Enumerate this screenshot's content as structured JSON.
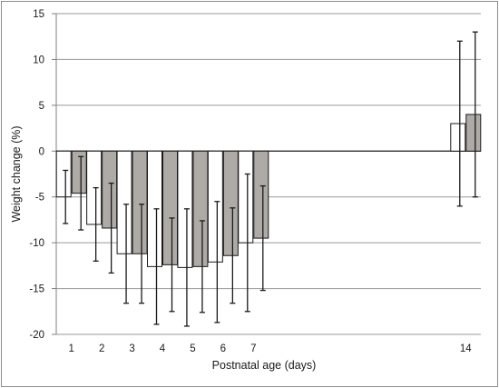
{
  "chart_data": {
    "type": "bar",
    "title": "",
    "xlabel": "Postnatal age (days)",
    "ylabel": "Weight change (%)",
    "ylim": [
      -20,
      15
    ],
    "yticks": [
      15,
      10,
      5,
      0,
      -5,
      -10,
      -15,
      -20
    ],
    "grid": true,
    "legend": "none",
    "categories": [
      "1",
      "2",
      "3",
      "4",
      "5",
      "6",
      "7",
      "14"
    ],
    "category_x": [
      1,
      2,
      3,
      4,
      5,
      6,
      7,
      14
    ],
    "xlim": [
      0.5,
      14.5
    ],
    "series": [
      {
        "color": "#ffffff",
        "values": [
          -5.0,
          -8.0,
          -11.2,
          -12.6,
          -12.7,
          -12.1,
          -10.0,
          3.0
        ],
        "error": [
          2.9,
          4.0,
          5.4,
          6.3,
          6.4,
          6.6,
          7.5,
          9.0
        ]
      },
      {
        "color": "#aeaaa6",
        "values": [
          -4.6,
          -8.4,
          -11.2,
          -12.4,
          -12.6,
          -11.4,
          -9.5,
          4.0
        ],
        "error": [
          4.0,
          4.9,
          5.4,
          5.1,
          5.0,
          5.2,
          5.7,
          9.0
        ]
      }
    ]
  }
}
